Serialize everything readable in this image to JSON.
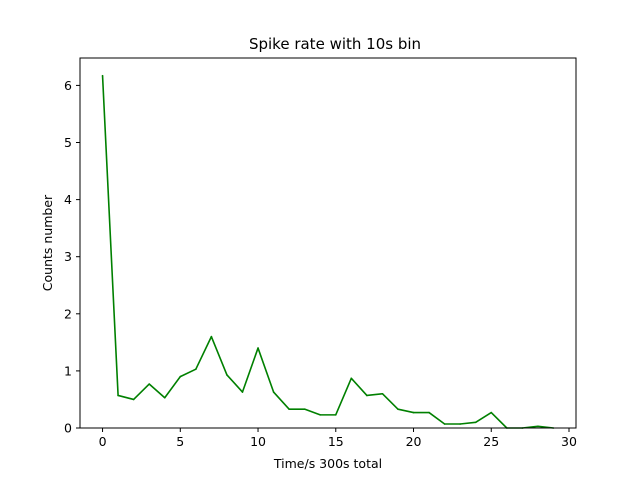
{
  "chart_data": {
    "type": "line",
    "title": "Spike rate with 10s bin",
    "xlabel": "Time/s 300s total",
    "ylabel": "Counts number",
    "xlim": [
      -1.45,
      30.45
    ],
    "ylim": [
      0,
      6.48
    ],
    "xticks": [
      0,
      5,
      10,
      15,
      20,
      25,
      30
    ],
    "yticks": [
      0,
      1,
      2,
      3,
      4,
      5,
      6
    ],
    "grid": false,
    "series": [
      {
        "color": "#008000",
        "x": [
          0,
          1,
          2,
          3,
          4,
          5,
          6,
          7,
          8,
          9,
          10,
          11,
          12,
          13,
          14,
          15,
          16,
          17,
          18,
          19,
          20,
          21,
          22,
          23,
          24,
          25,
          26,
          27,
          28,
          29
        ],
        "y": [
          6.17,
          0.57,
          0.5,
          0.77,
          0.53,
          0.9,
          1.03,
          1.6,
          0.93,
          0.63,
          1.4,
          0.63,
          0.33,
          0.33,
          0.23,
          0.23,
          0.87,
          0.57,
          0.6,
          0.33,
          0.27,
          0.27,
          0.07,
          0.07,
          0.1,
          0.27,
          0.0,
          0.0,
          0.03,
          0.0
        ]
      }
    ]
  }
}
